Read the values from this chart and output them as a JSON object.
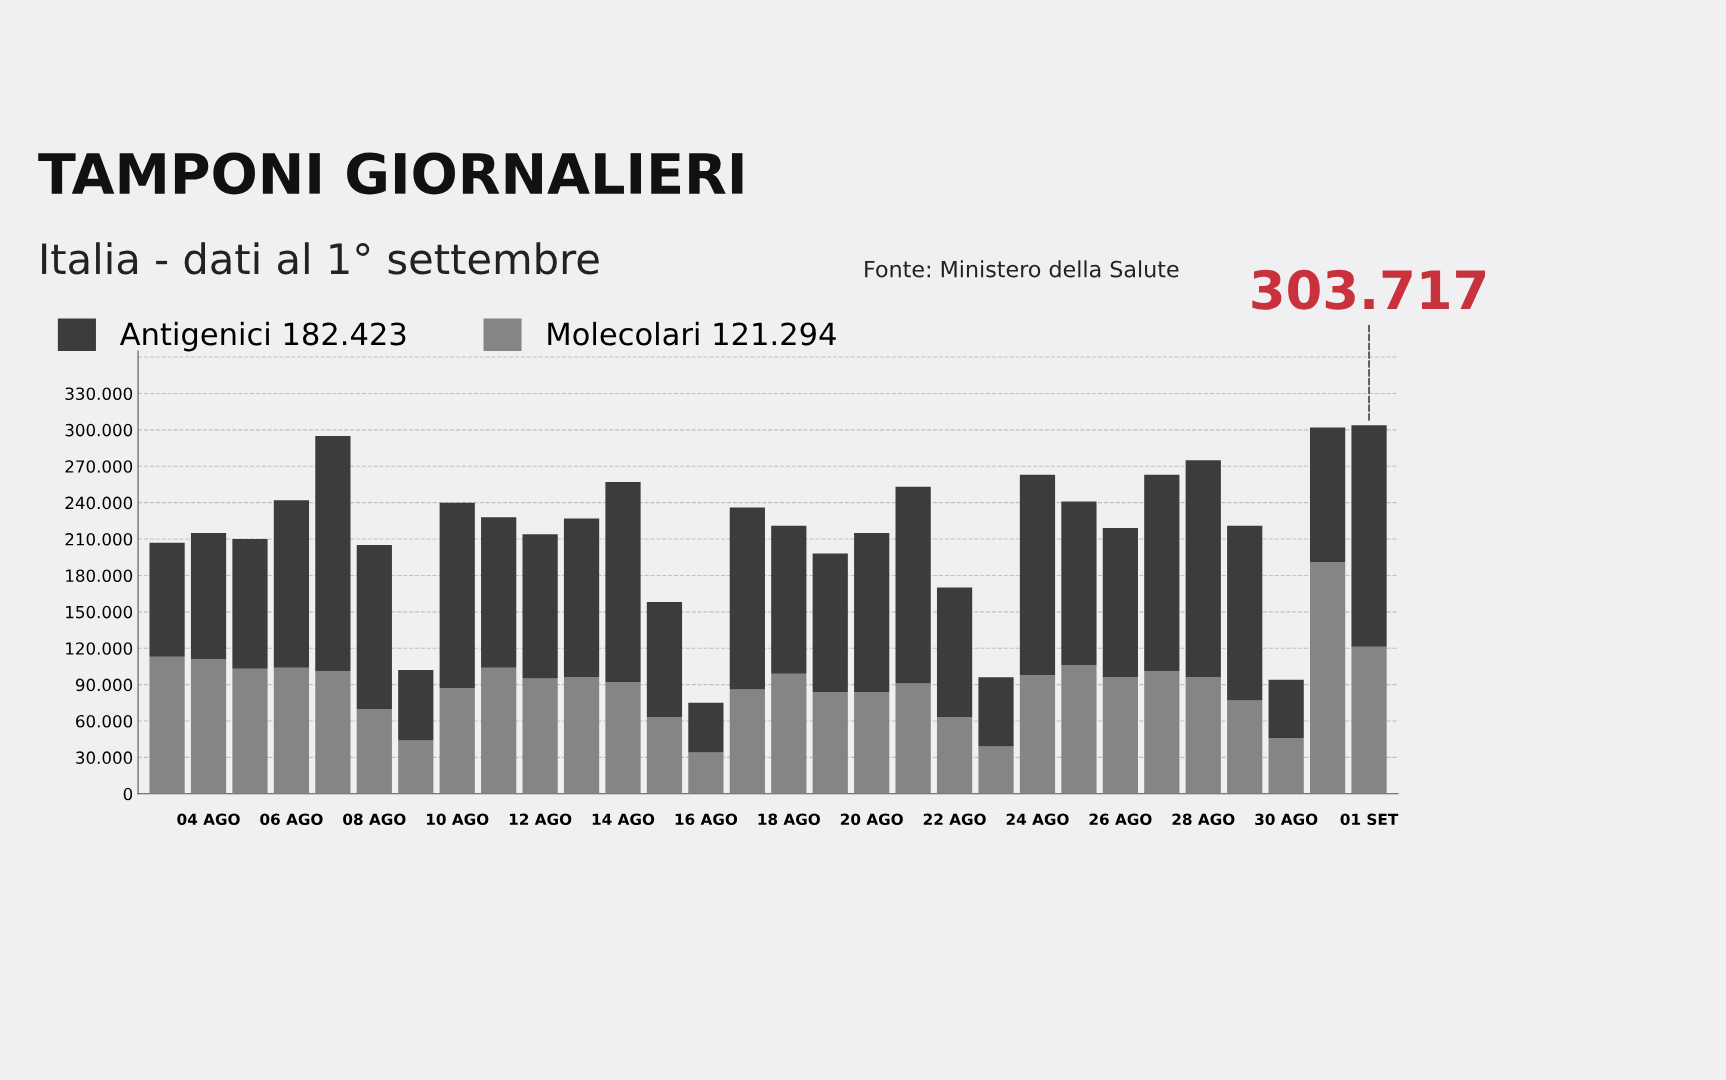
{
  "chart_data": {
    "type": "bar",
    "stacked": true,
    "title": "TAMPONI GIORNALIERI",
    "subtitle": "Italia - dati al 1° settembre",
    "categories": [
      null,
      "04 AGO",
      null,
      "06 AGO",
      null,
      "08 AGO",
      null,
      "10 AGO",
      null,
      "12 AGO",
      null,
      "14 AGO",
      null,
      "16 AGO",
      null,
      "18 AGO",
      null,
      "20 AGO",
      null,
      "22 AGO",
      null,
      "24 AGO",
      null,
      "26 AGO",
      null,
      "28 AGO",
      null,
      "30 AGO",
      null,
      "01 SET"
    ],
    "series": [
      {
        "name": "Molecolari 121.294",
        "color": "#858585",
        "values": [
          113000,
          111000,
          103000,
          104000,
          101000,
          70000,
          44000,
          87000,
          104000,
          95000,
          96000,
          92000,
          63000,
          34000,
          86000,
          99000,
          84000,
          84000,
          91000,
          63000,
          39000,
          98000,
          106000,
          96000,
          101000,
          96000,
          77000,
          46000,
          191000,
          121294
        ]
      },
      {
        "name": "Antigenici 182.423",
        "color": "#3c3c3e",
        "values": [
          94000,
          104000,
          107000,
          138000,
          194000,
          135000,
          58000,
          153000,
          124000,
          119000,
          131000,
          165000,
          95000,
          41000,
          150000,
          122000,
          114000,
          131000,
          162000,
          107000,
          57000,
          165000,
          135000,
          123000,
          162000,
          179000,
          144000,
          48000,
          111000,
          182423
        ]
      }
    ],
    "ylim": [
      0,
      365000
    ],
    "yticks": [
      {
        "value": 0,
        "label": "0"
      },
      {
        "value": 30000,
        "label": "30.000"
      },
      {
        "value": 60000,
        "label": "60.000"
      },
      {
        "value": 90000,
        "label": "90.000"
      },
      {
        "value": 120000,
        "label": "120.000"
      },
      {
        "value": 150000,
        "label": "150.000"
      },
      {
        "value": 180000,
        "label": "180.000"
      },
      {
        "value": 210000,
        "label": "210.000"
      },
      {
        "value": 240000,
        "label": "240.000"
      },
      {
        "value": 270000,
        "label": "270.000"
      },
      {
        "value": 300000,
        "label": "300.000"
      },
      {
        "value": 330000,
        "label": "330.000"
      },
      {
        "value": 360000,
        "label": null
      }
    ],
    "grid": "y",
    "legend": "top left",
    "annotations": [
      {
        "text": "303.717",
        "x": "01 SET",
        "y": 303717
      },
      "Fonte: Ministero della Salute"
    ]
  }
}
